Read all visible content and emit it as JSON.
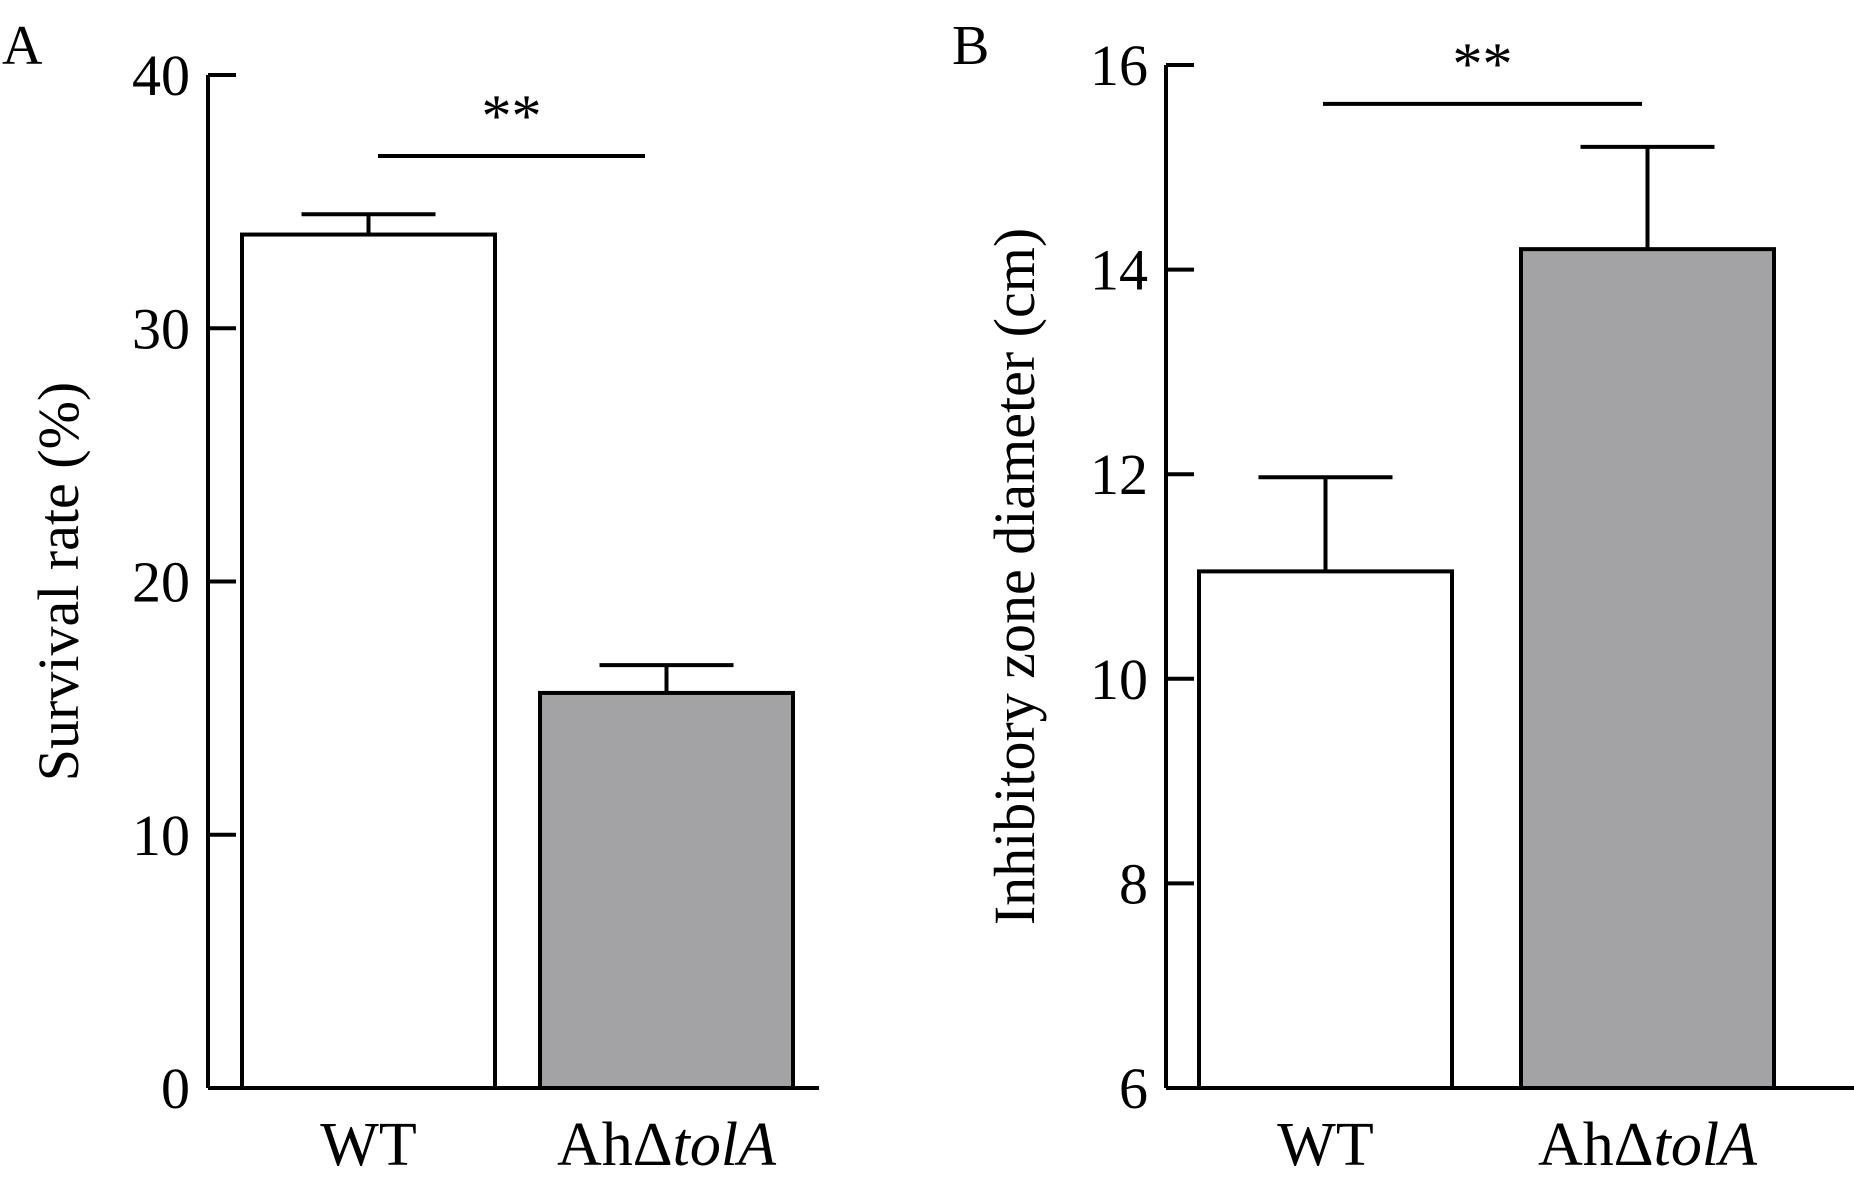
{
  "chart_data": [
    {
      "type": "bar",
      "panel_label": "A",
      "categories": [
        {
          "base": "WT",
          "italic": ""
        },
        {
          "base": "AhΔ",
          "italic": "tolA"
        }
      ],
      "values": [
        33.7,
        15.6
      ],
      "errors": [
        0.8,
        1.1
      ],
      "bar_colors": [
        "#ffffff",
        "#a3a3a6"
      ],
      "ylabel": "Survival rate (%)",
      "ylim": [
        0,
        40
      ],
      "yticks": [
        0,
        10,
        20,
        30,
        40
      ],
      "significance": {
        "label": "**",
        "between": [
          0,
          1
        ],
        "y": 36.8
      },
      "grid": false
    },
    {
      "type": "bar",
      "panel_label": "B",
      "categories": [
        {
          "base": "WT",
          "italic": ""
        },
        {
          "base": "AhΔ",
          "italic": "tolA"
        }
      ],
      "values": [
        11.05,
        14.2
      ],
      "errors": [
        0.92,
        1.0
      ],
      "bar_colors": [
        "#ffffff",
        "#a3a3a6"
      ],
      "ylabel": "Inhibitory zone diameter (cm)",
      "ylim": [
        6,
        16
      ],
      "yticks": [
        6,
        8,
        10,
        12,
        14,
        16
      ],
      "significance": {
        "label": "**",
        "between": [
          0,
          1
        ],
        "y": 15.62
      },
      "grid": false
    }
  ]
}
